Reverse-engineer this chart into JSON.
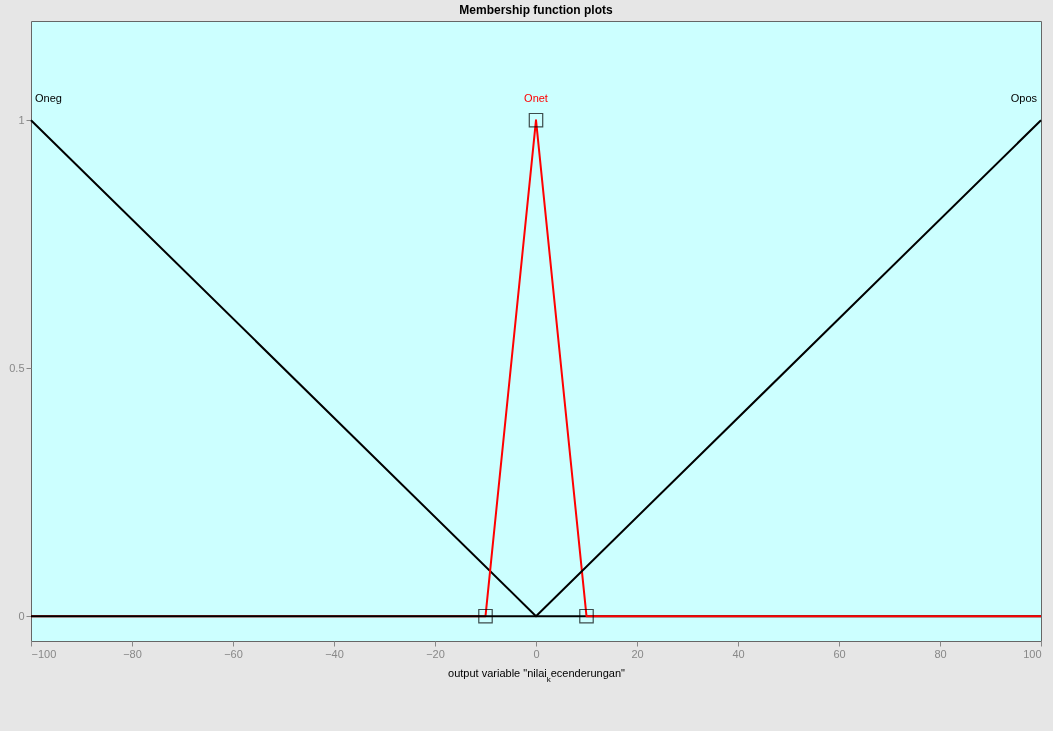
{
  "chart_data": {
    "type": "line",
    "title": "Membership function plots",
    "xlabel": "output variable \"nilai$_{k}$ecenderungan\"",
    "xlim": [
      -100,
      100
    ],
    "ylim": [
      -0.05,
      1.2
    ],
    "xticks": [
      -100,
      -80,
      -60,
      -40,
      -20,
      0,
      20,
      40,
      60,
      80,
      100
    ],
    "yticks": [
      0,
      0.5,
      1
    ],
    "grid": false,
    "legend": false,
    "series": [
      {
        "name": "Oneg",
        "color": "#000000",
        "x": [
          -100,
          0,
          100
        ],
        "values": [
          1,
          0,
          0
        ]
      },
      {
        "name": "Onet",
        "color": "#ff0000",
        "x": [
          -100,
          -10,
          0,
          10,
          100
        ],
        "values": [
          0,
          0,
          1,
          0,
          0
        ]
      },
      {
        "name": "Opos",
        "color": "#000000",
        "x": [
          -100,
          0,
          100
        ],
        "values": [
          0,
          0,
          1
        ]
      },
      {
        "type": "scatter",
        "marker": "square",
        "color": "#000000",
        "x": [
          -10,
          0,
          10
        ],
        "values": [
          0,
          1,
          0
        ]
      }
    ]
  }
}
